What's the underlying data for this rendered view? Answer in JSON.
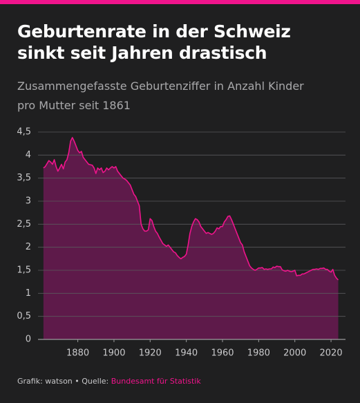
{
  "chart_data": {
    "type": "area",
    "title": [
      "Geburtenrate in der Schweiz",
      "sinkt seit Jahren drastisch"
    ],
    "subtitle": [
      "Zusammengefasste Geburtenziffer in Anzahl Kinder",
      "pro Mutter seit 1861"
    ],
    "credit": "Grafik: watson • Quelle:",
    "source": "Bundesamt für Statistik",
    "color": "#f0148c",
    "fill": "#5e1a4a",
    "grid": true,
    "xlim": [
      1858,
      2028
    ],
    "xticks": [
      1880,
      1900,
      1920,
      1940,
      1960,
      1980,
      2000,
      2020
    ],
    "ylim": [
      0,
      4.5
    ],
    "yticks": [
      0,
      {
        "value": 0.5,
        "label": "0,5"
      },
      1,
      {
        "value": 1.5,
        "label": "1,5"
      },
      2,
      {
        "value": 2.5,
        "label": "2,5"
      },
      3,
      {
        "value": 3.5,
        "label": "3,5"
      },
      4,
      {
        "value": 4.5,
        "label": "4,5"
      }
    ],
    "x": [
      1861,
      1862,
      1864,
      1865,
      1866,
      1867,
      1868,
      1869,
      1870,
      1871,
      1872,
      1873,
      1874,
      1875,
      1876,
      1877,
      1878,
      1879,
      1880,
      1881,
      1882,
      1883,
      1884,
      1885,
      1886,
      1888,
      1889,
      1890,
      1891,
      1892,
      1893,
      1894,
      1895,
      1896,
      1897,
      1898,
      1899,
      1900,
      1901,
      1902,
      1903,
      1904,
      1905,
      1906,
      1907,
      1908,
      1909,
      1910,
      1911,
      1912,
      1913,
      1914,
      1915,
      1916,
      1917,
      1918,
      1919,
      1920,
      1921,
      1922,
      1923,
      1924,
      1925,
      1926,
      1927,
      1928,
      1929,
      1930,
      1931,
      1932,
      1933,
      1934,
      1935,
      1936,
      1937,
      1938,
      1939,
      1940,
      1941,
      1942,
      1943,
      1944,
      1945,
      1946,
      1947,
      1948,
      1949,
      1950,
      1951,
      1952,
      1953,
      1954,
      1955,
      1956,
      1957,
      1958,
      1959,
      1960,
      1961,
      1962,
      1963,
      1964,
      1965,
      1966,
      1967,
      1968,
      1969,
      1970,
      1971,
      1972,
      1973,
      1974,
      1975,
      1976,
      1977,
      1978,
      1979,
      1980,
      1981,
      1982,
      1983,
      1984,
      1985,
      1986,
      1987,
      1988,
      1989,
      1990,
      1991,
      1992,
      1993,
      1994,
      1995,
      1996,
      1997,
      1998,
      1999,
      2000,
      2001,
      2002,
      2003,
      2004,
      2005,
      2006,
      2007,
      2008,
      2009,
      2010,
      2011,
      2012,
      2013,
      2014,
      2015,
      2016,
      2017,
      2018,
      2019,
      2020,
      2021,
      2022,
      2023,
      2024
    ],
    "values": [
      3.72,
      3.75,
      3.88,
      3.85,
      3.8,
      3.9,
      3.75,
      3.65,
      3.72,
      3.8,
      3.7,
      3.85,
      3.9,
      4.05,
      4.3,
      4.38,
      4.3,
      4.2,
      4.1,
      4.05,
      4.08,
      3.95,
      3.9,
      3.85,
      3.8,
      3.78,
      3.72,
      3.6,
      3.72,
      3.68,
      3.72,
      3.62,
      3.65,
      3.72,
      3.68,
      3.72,
      3.75,
      3.72,
      3.75,
      3.65,
      3.6,
      3.55,
      3.5,
      3.48,
      3.45,
      3.4,
      3.35,
      3.25,
      3.15,
      3.1,
      3.0,
      2.9,
      2.5,
      2.4,
      2.35,
      2.35,
      2.38,
      2.62,
      2.58,
      2.45,
      2.35,
      2.3,
      2.22,
      2.15,
      2.08,
      2.05,
      2.02,
      2.05,
      2.0,
      1.95,
      1.9,
      1.88,
      1.82,
      1.78,
      1.75,
      1.78,
      1.8,
      1.85,
      2.05,
      2.3,
      2.45,
      2.55,
      2.62,
      2.6,
      2.55,
      2.45,
      2.4,
      2.35,
      2.3,
      2.32,
      2.3,
      2.28,
      2.3,
      2.35,
      2.42,
      2.4,
      2.45,
      2.45,
      2.55,
      2.6,
      2.67,
      2.68,
      2.6,
      2.5,
      2.4,
      2.3,
      2.2,
      2.1,
      2.05,
      1.9,
      1.8,
      1.7,
      1.6,
      1.55,
      1.52,
      1.5,
      1.52,
      1.55,
      1.55,
      1.56,
      1.52,
      1.53,
      1.52,
      1.53,
      1.53,
      1.57,
      1.56,
      1.59,
      1.58,
      1.58,
      1.51,
      1.49,
      1.48,
      1.5,
      1.48,
      1.47,
      1.48,
      1.5,
      1.38,
      1.39,
      1.39,
      1.42,
      1.42,
      1.44,
      1.46,
      1.48,
      1.5,
      1.52,
      1.52,
      1.53,
      1.52,
      1.54,
      1.54,
      1.55,
      1.52,
      1.52,
      1.48,
      1.46,
      1.52,
      1.39,
      1.33,
      1.29
    ]
  }
}
